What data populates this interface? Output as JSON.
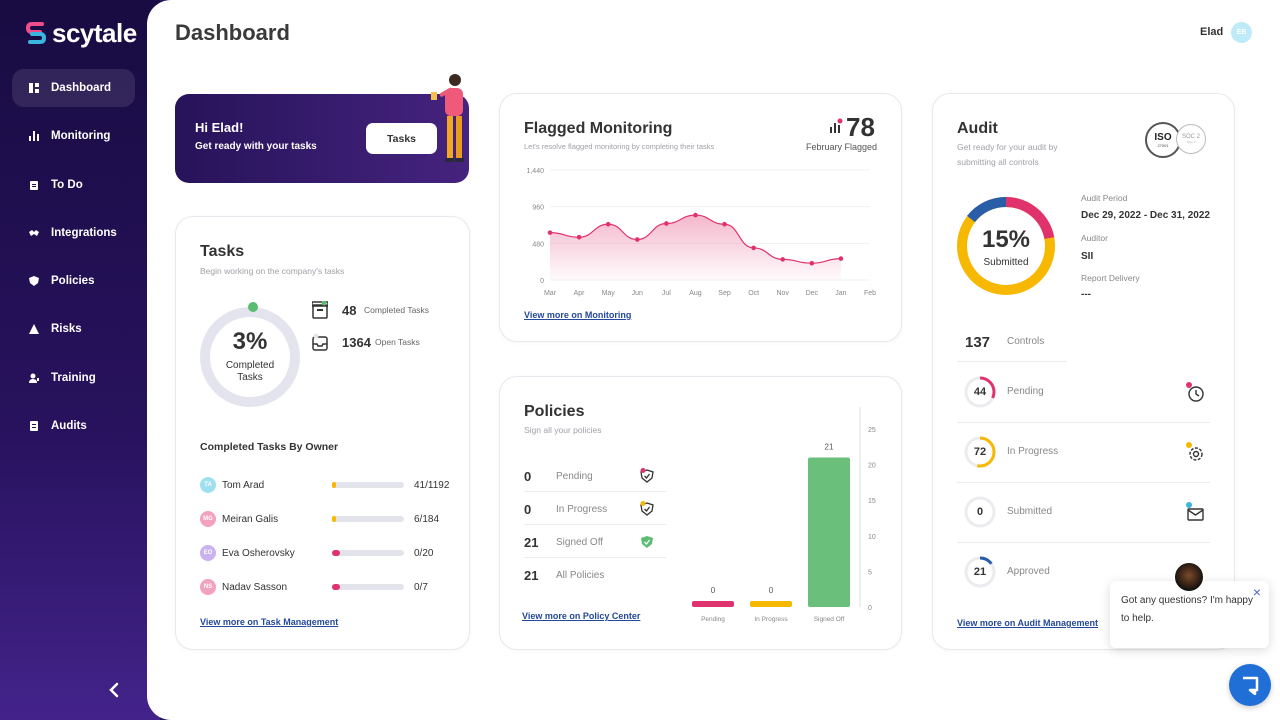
{
  "app": {
    "logo_text": "scytale"
  },
  "sidebar": {
    "items": [
      {
        "label": "Dashboard",
        "icon": "dashboard-icon",
        "active": true
      },
      {
        "label": "Monitoring",
        "icon": "bar-chart-icon"
      },
      {
        "label": "To Do",
        "icon": "clipboard-icon"
      },
      {
        "label": "Integrations",
        "icon": "handshake-icon"
      },
      {
        "label": "Policies",
        "icon": "shield-icon"
      },
      {
        "label": "Risks",
        "icon": "warning-icon"
      },
      {
        "label": "Training",
        "icon": "user-training-icon"
      },
      {
        "label": "Audits",
        "icon": "checklist-icon"
      }
    ],
    "collapse_icon": "chevron-left-icon"
  },
  "header": {
    "title": "Dashboard",
    "user_name": "Elad",
    "user_initials": "EB"
  },
  "welcome": {
    "greeting": "Hi Elad!",
    "subtitle": "Get ready with your tasks",
    "button_label": "Tasks"
  },
  "tasks": {
    "title": "Tasks",
    "subtitle": "Begin working on the company's tasks",
    "percent": "3%",
    "percent_label": "Completed\nTasks",
    "completed_count": "48",
    "completed_label": "Completed Tasks",
    "open_count": "1364",
    "open_label": "Open Tasks",
    "owners_title": "Completed Tasks By Owner",
    "owners": [
      {
        "initials": "TA",
        "name": "Tom Arad",
        "value": "41/1192",
        "progress": 0.034,
        "avatar_color": "#9fe0f0",
        "bar_color": "#f6b800"
      },
      {
        "initials": "MG",
        "name": "Meiran Galis",
        "value": "6/184",
        "progress": 0.033,
        "avatar_color": "#f2a2bd",
        "bar_color": "#f6b800"
      },
      {
        "initials": "EO",
        "name": "Eva Osherovsky",
        "value": "0/20",
        "progress": 0.0,
        "avatar_color": "#c9b2ef",
        "bar_color": "#e0336e"
      },
      {
        "initials": "NS",
        "name": "Nadav Sasson",
        "value": "0/7",
        "progress": 0.0,
        "avatar_color": "#f2a2bd",
        "bar_color": "#e0336e"
      }
    ],
    "link": "View more on Task Management"
  },
  "monitoring": {
    "title": "Flagged Monitoring",
    "subtitle": "Let's resolve flagged monitoring by completing their tasks",
    "flagged_count": "78",
    "flagged_label": "February Flagged",
    "link": "View more on Monitoring"
  },
  "chart_data": [
    {
      "type": "area",
      "title": "Flagged Monitoring",
      "categories": [
        "Mar",
        "Apr",
        "May",
        "Jun",
        "Jul",
        "Aug",
        "Sep",
        "Oct",
        "Nov",
        "Dec",
        "Jan",
        "Feb"
      ],
      "values": [
        620,
        560,
        730,
        530,
        740,
        850,
        730,
        420,
        270,
        220,
        280,
        null
      ],
      "y_ticks": [
        "1,440",
        "960",
        "480",
        "0"
      ],
      "ylim": [
        0,
        1440
      ],
      "color": "#e0336e"
    },
    {
      "type": "bar",
      "title": "Policies",
      "categories": [
        "Pending",
        "In Progress",
        "Signed Off"
      ],
      "values": [
        0,
        0,
        21
      ],
      "value_labels": [
        "0",
        "0",
        "21"
      ],
      "colors": [
        "#e0336e",
        "#f6b800",
        "#6abf7b"
      ],
      "y_ticks": [
        "25",
        "20",
        "15",
        "10",
        "5",
        "0"
      ],
      "ylim": [
        0,
        25
      ]
    }
  ],
  "policies": {
    "title": "Policies",
    "subtitle": "Sign all your policies",
    "rows": [
      {
        "count": "0",
        "label": "Pending",
        "icon": "shield-check-icon",
        "dot": "#e0336e"
      },
      {
        "count": "0",
        "label": "In Progress",
        "icon": "shield-check-icon",
        "dot": "#f6b800"
      },
      {
        "count": "21",
        "label": "Signed Off",
        "icon": "shield-check-icon",
        "dot": "#6abf7b"
      },
      {
        "count": "21",
        "label": "All Policies",
        "icon": "",
        "dot": ""
      }
    ],
    "link": "View more on Policy Center"
  },
  "audit": {
    "title": "Audit",
    "subtitle": "Get ready for your audit by submitting all controls",
    "badge_iso": "ISO",
    "badge_iso_sub": "27001",
    "badge_soc": "SOC 2",
    "badge_soc_sub": "Type 2",
    "percent": "15%",
    "percent_label": "Submitted",
    "period_label": "Audit Period",
    "period_value": "Dec 29, 2022 - Dec 31, 2022",
    "auditor_label": "Auditor",
    "auditor_value": "SII",
    "delivery_label": "Report Delivery",
    "delivery_value": "---",
    "controls_count": "137",
    "controls_label": "Controls",
    "rows": [
      {
        "count": "44",
        "label": "Pending",
        "icon": "clock-icon",
        "ring": "#e0336e",
        "fraction": 0.32
      },
      {
        "count": "72",
        "label": "In Progress",
        "icon": "gear-icon",
        "ring": "#f6b800",
        "fraction": 0.53
      },
      {
        "count": "0",
        "label": "Submitted",
        "icon": "mail-icon",
        "ring": "#3ab6e0",
        "fraction": 0.0
      },
      {
        "count": "21",
        "label": "Approved",
        "icon": "check-icon",
        "ring": "#2a5da8",
        "fraction": 0.15
      }
    ],
    "link": "View more on Audit Management"
  },
  "chat": {
    "message": "Got any questions? I'm happy to help.",
    "close": "×"
  },
  "colors": {
    "brand": "#27135a",
    "pink": "#e0336e",
    "yellow": "#f6b800",
    "green": "#6abf7b",
    "blue": "#2a5da8"
  }
}
